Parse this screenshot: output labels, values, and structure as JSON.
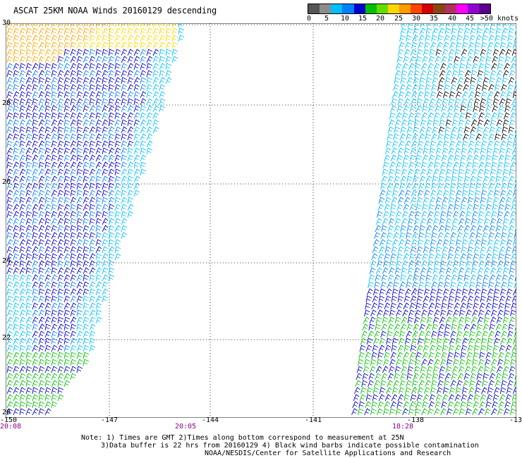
{
  "title": "ASCAT 25KM NOAA Winds 20160129 descending",
  "legend": {
    "colors": [
      "#555555",
      "#8c8c8c",
      "#00bfff",
      "#0080ff",
      "#0000cd",
      "#00c000",
      "#66dd00",
      "#ffd700",
      "#ff9a00",
      "#ff4500",
      "#d40000",
      "#8b4513",
      "#b03060",
      "#ff00ff",
      "#9400d3",
      "#5a008f"
    ],
    "labels": [
      "0",
      "5",
      "10",
      "15",
      "20",
      "25",
      "30",
      "35",
      "40",
      "45",
      ">50 knots"
    ]
  },
  "axes": {
    "lat_labels": [
      "30",
      "28",
      "26",
      "24",
      "22",
      "20"
    ],
    "lon_labels": [
      "-150",
      "-147",
      "-144",
      "-141",
      "-138",
      "-13"
    ]
  },
  "pass_times": [
    "20:08",
    "20:05",
    "18:28"
  ],
  "notes": [
    "Note: 1) Times are GMT 2)Times along bottom correspond to measurement at 25N",
    "3)Data buffer is 22 hrs from 20160129 4) Black wind barbs indicate possible contamination",
    "NOAA/NESDIS/Center for Satellite Applications and Research"
  ]
}
